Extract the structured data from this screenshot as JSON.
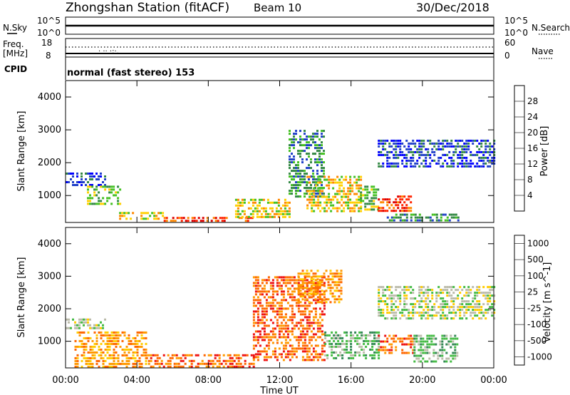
{
  "header": {
    "title": "Zhongshan Station (fitACF)",
    "beam": "Beam 10",
    "date": "30/Dec/2018"
  },
  "strips": {
    "nsky": {
      "label": "N.Sky",
      "ticks": [
        "10^5",
        "10^0"
      ]
    },
    "nsearch": {
      "label": "N.Search",
      "ticks": [
        "10^5",
        "10^0"
      ]
    },
    "freq": {
      "label_top": "Freq.",
      "label_unit": "[MHz]",
      "ticks": [
        "18",
        "8"
      ]
    },
    "nave": {
      "label": "Nave",
      "ticks": [
        "60",
        "0"
      ]
    },
    "cpid": {
      "label": "CPID",
      "mode": "normal (fast stereo) 153"
    }
  },
  "chart_data": [
    {
      "type": "heatmap",
      "panel": "power",
      "ylabel": "Slant Range [km]",
      "ylim": [
        180,
        4500
      ],
      "yticks": [
        "1000",
        "2000",
        "3000",
        "4000"
      ],
      "xlabel": "Time UT",
      "xticks": [
        "00:00",
        "04:00",
        "08:00",
        "12:00",
        "16:00",
        "20:00",
        "00:00"
      ],
      "colorbar": {
        "label": "Power [dB]",
        "tick_labels": [
          "4",
          "8",
          "12",
          "16",
          "20",
          "24",
          "28"
        ],
        "colors": [
          "#0000ff",
          "#2040c8",
          "#338844",
          "#44c022",
          "#ffd000",
          "#ff8800",
          "#ff2200",
          "#dd0000"
        ]
      },
      "regions": [
        {
          "t0": 0.0,
          "t1": 2.2,
          "r0": 1350,
          "r1": 1700,
          "level": 1
        },
        {
          "t0": 1.2,
          "t1": 3.0,
          "r0": 700,
          "r1": 1300,
          "level": 3
        },
        {
          "t0": 3.0,
          "t1": 5.5,
          "r0": 250,
          "r1": 500,
          "level": 4
        },
        {
          "t0": 5.5,
          "t1": 10.5,
          "r0": 180,
          "r1": 350,
          "level": 6
        },
        {
          "t0": 9.5,
          "t1": 12.5,
          "r0": 300,
          "r1": 900,
          "level": 4
        },
        {
          "t0": 12.5,
          "t1": 14.5,
          "r0": 1000,
          "r1": 3000,
          "level": 2
        },
        {
          "t0": 13.5,
          "t1": 16.5,
          "r0": 500,
          "r1": 1600,
          "level": 4
        },
        {
          "t0": 16.5,
          "t1": 17.5,
          "r0": 600,
          "r1": 1300,
          "level": 3
        },
        {
          "t0": 17.5,
          "t1": 19.3,
          "r0": 500,
          "r1": 1000,
          "level": 6
        },
        {
          "t0": 17.5,
          "t1": 24.0,
          "r0": 1900,
          "r1": 2700,
          "level": 1
        },
        {
          "t0": 18.0,
          "t1": 22.0,
          "r0": 250,
          "r1": 450,
          "level": 2
        }
      ]
    },
    {
      "type": "heatmap",
      "panel": "velocity",
      "ylabel": "Slant Range [km]",
      "ylim": [
        180,
        4500
      ],
      "yticks": [
        "1000",
        "2000",
        "3000",
        "4000"
      ],
      "xlabel": "Time UT",
      "xticks": [
        "00:00",
        "04:00",
        "08:00",
        "12:00",
        "16:00",
        "20:00",
        "00:00"
      ],
      "colorbar": {
        "label": "Velocity [m s^-1]",
        "tick_labels": [
          "1000",
          "500",
          "100",
          "25",
          "-25",
          "-100",
          "-500",
          "-1000"
        ],
        "colors": [
          "#2040c0",
          "#338855",
          "#44bb44",
          "#bbbbaa",
          "#ffcc00",
          "#ff9900",
          "#ff6600",
          "#ee1111"
        ]
      },
      "regions": [
        {
          "t0": 0.0,
          "t1": 2.2,
          "r0": 1350,
          "r1": 1700,
          "level": 3
        },
        {
          "t0": 0.5,
          "t1": 4.5,
          "r0": 200,
          "r1": 1300,
          "level": 5
        },
        {
          "t0": 4.5,
          "t1": 10.5,
          "r0": 180,
          "r1": 600,
          "level": 6
        },
        {
          "t0": 10.5,
          "t1": 14.5,
          "r0": 400,
          "r1": 3000,
          "level": 6
        },
        {
          "t0": 13.0,
          "t1": 15.5,
          "r0": 2200,
          "r1": 3200,
          "level": 5
        },
        {
          "t0": 14.5,
          "t1": 17.5,
          "r0": 500,
          "r1": 1300,
          "level": 2
        },
        {
          "t0": 17.5,
          "t1": 19.5,
          "r0": 600,
          "r1": 1200,
          "level": 6
        },
        {
          "t0": 19.5,
          "t1": 22.0,
          "r0": 400,
          "r1": 1200,
          "level": 2
        },
        {
          "t0": 17.5,
          "t1": 24.0,
          "r0": 1700,
          "r1": 2700,
          "level": 3
        }
      ]
    }
  ]
}
